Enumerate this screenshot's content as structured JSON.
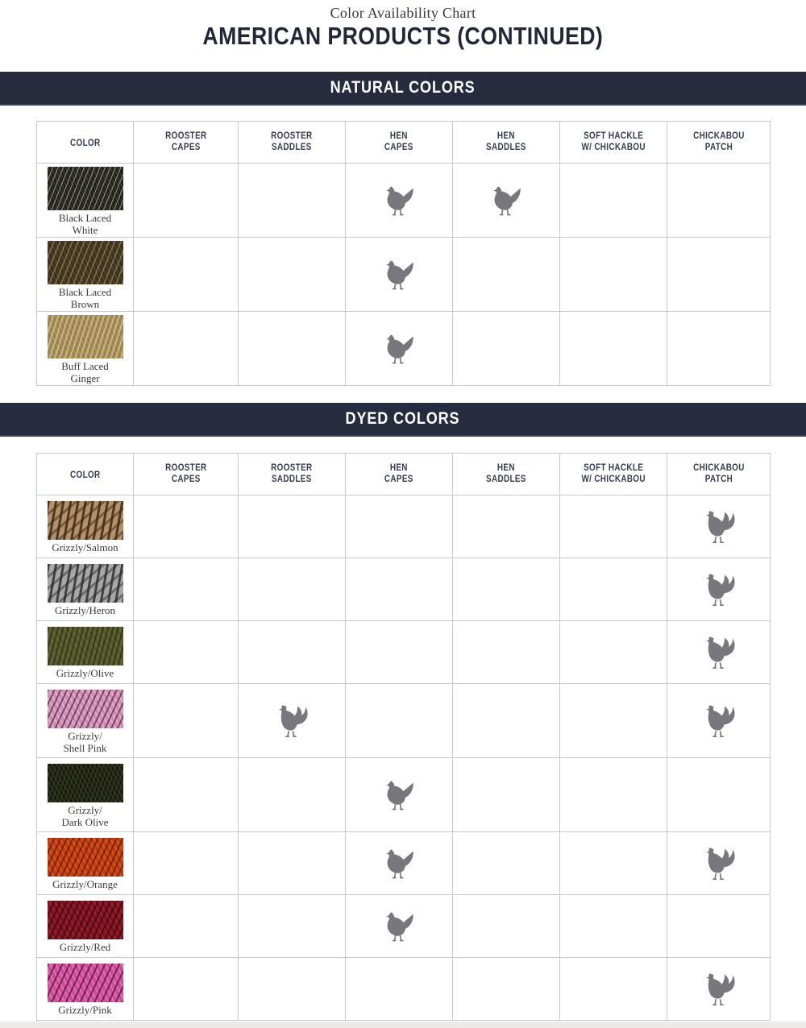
{
  "page": {
    "title": "Color Availability Chart",
    "subtitle": "AMERICAN PRODUCTS (CONTINUED)"
  },
  "colors": {
    "band_background": "#272b3e",
    "band_text": "#ffffff",
    "subtitle_text": "#232639",
    "column_header_text": "#353b4e",
    "grid_line": "#c8c8c8",
    "icon_gray": "#77777d",
    "label_text": "#3a3a3a"
  },
  "icons": {
    "hen": "hen-icon",
    "rooster": "rooster-icon"
  },
  "columns": [
    {
      "id": "color",
      "label": "COLOR",
      "lines": [
        "COLOR"
      ]
    },
    {
      "id": "rooster_capes",
      "label": "ROOSTER CAPES",
      "lines": [
        "ROOSTER",
        "CAPES"
      ]
    },
    {
      "id": "rooster_saddles",
      "label": "ROOSTER SADDLES",
      "lines": [
        "ROOSTER",
        "SADDLES"
      ]
    },
    {
      "id": "hen_capes",
      "label": "HEN CAPES",
      "lines": [
        "HEN",
        "CAPES"
      ]
    },
    {
      "id": "hen_saddles",
      "label": "HEN SADDLES",
      "lines": [
        "HEN",
        "SADDLES"
      ]
    },
    {
      "id": "soft_hackle_w_chickabou",
      "label": "SOFT HACKLE W/ CHICKABOU",
      "lines": [
        "SOFT HACKLE",
        "W/ CHICKABOU"
      ]
    },
    {
      "id": "chickabou_patch",
      "label": "CHICKABOU PATCH",
      "lines": [
        "CHICKABOU",
        "PATCH"
      ]
    }
  ],
  "sections": [
    {
      "id": "natural",
      "heading": "NATURAL COLORS",
      "rows": [
        {
          "name": "Black Laced White",
          "label_lines": [
            "Black Laced",
            "White"
          ],
          "swatch": "black-laced-white",
          "swatch_base": "#21211b",
          "cells": [
            "",
            "",
            "hen",
            "hen",
            "",
            ""
          ]
        },
        {
          "name": "Black Laced Brown",
          "label_lines": [
            "Black Laced",
            "Brown"
          ],
          "swatch": "black-laced-brown",
          "swatch_base": "#39301f",
          "cells": [
            "",
            "",
            "hen",
            "",
            "",
            ""
          ]
        },
        {
          "name": "Buff Laced Ginger",
          "label_lines": [
            "Buff Laced",
            "Ginger"
          ],
          "swatch": "buff-laced-ginger",
          "swatch_base": "#a38c58",
          "cells": [
            "",
            "",
            "hen",
            "",
            "",
            ""
          ]
        }
      ]
    },
    {
      "id": "dyed",
      "heading": "DYED COLORS",
      "rows": [
        {
          "name": "Grizzly/Salmon",
          "label_lines": [
            "Grizzly/Salmon"
          ],
          "swatch": "grizzly-salmon",
          "swatch_base": "#b39169",
          "cells": [
            "",
            "",
            "",
            "",
            "",
            "rooster"
          ]
        },
        {
          "name": "Grizzly/Heron",
          "label_lines": [
            "Grizzly/Heron"
          ],
          "swatch": "grizzly-heron",
          "swatch_base": "#a7a7a5",
          "cells": [
            "",
            "",
            "",
            "",
            "",
            "rooster"
          ]
        },
        {
          "name": "Grizzly/Olive",
          "label_lines": [
            "Grizzly/Olive"
          ],
          "swatch": "grizzly-olive",
          "swatch_base": "#565a2e",
          "cells": [
            "",
            "",
            "",
            "",
            "",
            "rooster"
          ]
        },
        {
          "name": "Grizzly/Shell Pink",
          "label_lines": [
            "Grizzly/",
            "Shell Pink"
          ],
          "swatch": "grizzly-shell-pink",
          "swatch_base": "#d08cb4",
          "cells": [
            "",
            "rooster",
            "",
            "",
            "",
            "rooster"
          ]
        },
        {
          "name": "Grizzly/Dark Olive",
          "label_lines": [
            "Grizzly/",
            "Dark Olive"
          ],
          "swatch": "grizzly-dark-olive",
          "swatch_base": "#262a18",
          "cells": [
            "",
            "",
            "hen",
            "",
            "",
            ""
          ]
        },
        {
          "name": "Grizzly/Orange",
          "label_lines": [
            "Grizzly/Orange"
          ],
          "swatch": "grizzly-orange",
          "swatch_base": "#bf3c10",
          "cells": [
            "",
            "",
            "hen",
            "",
            "",
            "rooster"
          ]
        },
        {
          "name": "Grizzly/Red",
          "label_lines": [
            "Grizzly/Red"
          ],
          "swatch": "grizzly-red",
          "swatch_base": "#7c1220",
          "cells": [
            "",
            "",
            "hen",
            "",
            "",
            ""
          ]
        },
        {
          "name": "Grizzly/Pink",
          "label_lines": [
            "Grizzly/Pink"
          ],
          "swatch": "grizzly-pink",
          "swatch_base": "#cc4e9a",
          "cells": [
            "",
            "",
            "",
            "",
            "",
            "rooster"
          ]
        }
      ]
    }
  ]
}
